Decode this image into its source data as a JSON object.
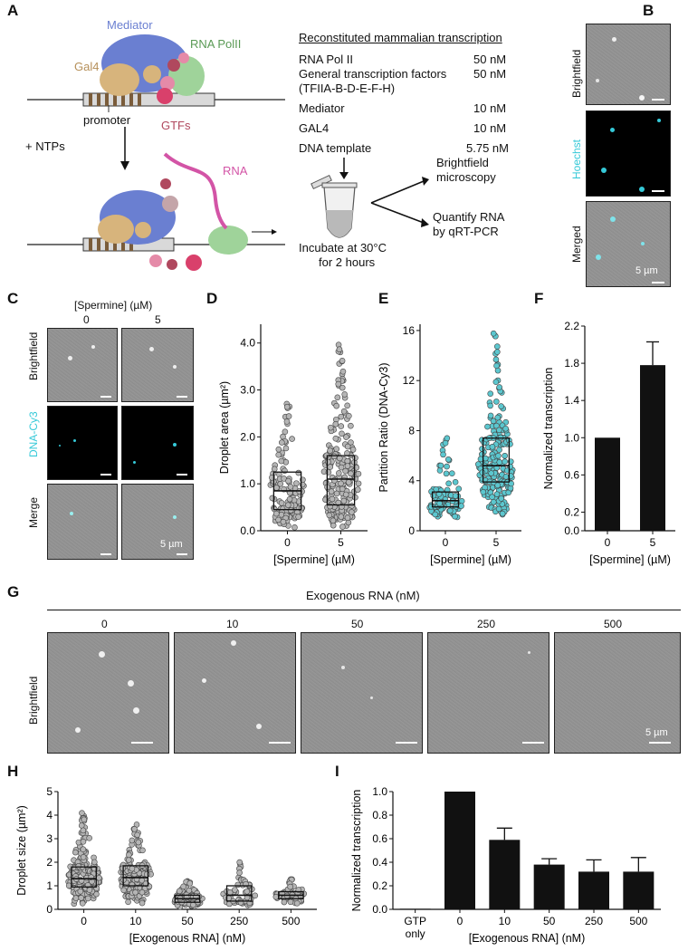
{
  "panel_letters": {
    "A": "A",
    "B": "B",
    "C": "C",
    "D": "D",
    "E": "E",
    "F": "F",
    "G": "G",
    "H": "H",
    "I": "I"
  },
  "panelA": {
    "mediator": "Mediator",
    "rna_polii": "RNA PolII",
    "gal4": "Gal4",
    "promoter": "promoter",
    "gtfs": "GTFs",
    "ntps": "+ NTPs",
    "rna": "RNA",
    "table_title": "Reconstituted mammalian transcription",
    "rows": [
      {
        "name": "RNA Pol II",
        "conc": "50 nM"
      },
      {
        "name": "General transcription factors (TFIIA-B-D-E-F-H)",
        "conc": "50 nM"
      },
      {
        "name": "Mediator",
        "conc": "10 nM"
      },
      {
        "name": "GAL4",
        "conc": "10 nM"
      },
      {
        "name": "DNA template",
        "conc": "5.75 nM"
      }
    ],
    "incubate_line1": "Incubate at 30°C",
    "incubate_line2": "for 2 hours",
    "out1_line1": "Brightfield",
    "out1_line2": "microscopy",
    "out2_line1": "Quantify RNA",
    "out2_line2": "by qRT-PCR",
    "colors": {
      "mediator": "#6a7fd1",
      "polii": "#9fd39a",
      "gal4": "#d7b47c",
      "gtf": "#d9406b",
      "rna": "#d354a6"
    }
  },
  "panelB": {
    "rows": [
      "Brightfield",
      "Hoechst",
      "Merged"
    ],
    "scale": "5 µm",
    "hoechst_color": "#35c9d8"
  },
  "panelC": {
    "header": "[Spermine] (µM)",
    "cols": [
      "0",
      "5"
    ],
    "rows": [
      "Brightfield",
      "DNA-Cy3",
      "Merge"
    ],
    "scale": "5 µm",
    "cy3_color": "#35c9d8"
  },
  "panelG": {
    "header": "Exogenous RNA (nM)",
    "cols": [
      "0",
      "10",
      "50",
      "250",
      "500"
    ],
    "row": "Brightfield",
    "scale": "5 µm"
  },
  "chart_data": [
    {
      "id": "D",
      "type": "scatter",
      "title": "",
      "xlabel": "[Spermine] (µM)",
      "ylabel": "Droplet area (µm²)",
      "categories": [
        "0",
        "5"
      ],
      "ylim": [
        0,
        4.4
      ],
      "yticks": [
        "0.0",
        "1.0",
        "2.0",
        "3.0",
        "4.0"
      ],
      "box": [
        {
          "q1": 0.45,
          "median": 0.85,
          "q3": 1.25,
          "min": 0.05,
          "max": 2.85
        },
        {
          "q1": 0.55,
          "median": 1.1,
          "q3": 1.6,
          "min": 0.05,
          "max": 4.0
        }
      ],
      "n_points": [
        120,
        220
      ],
      "point_color": "#b5b5b5"
    },
    {
      "id": "E",
      "type": "scatter",
      "title": "",
      "xlabel": "[Spermine] (µM)",
      "ylabel": "Partition Ratio (DNA-Cy3)",
      "categories": [
        "0",
        "5"
      ],
      "ylim": [
        0,
        16.5
      ],
      "yticks": [
        "0",
        "4",
        "8",
        "12",
        "16"
      ],
      "box": [
        {
          "q1": 1.9,
          "median": 2.4,
          "q3": 3.1,
          "min": 0.9,
          "max": 7.5
        },
        {
          "q1": 3.9,
          "median": 5.2,
          "q3": 7.4,
          "min": 1.0,
          "max": 16.0
        }
      ],
      "n_points": [
        90,
        210
      ],
      "point_color": "#5cc7cf"
    },
    {
      "id": "F",
      "type": "bar",
      "title": "",
      "xlabel": "[Spermine] (µM)",
      "ylabel": "Normalized transcription",
      "categories": [
        "0",
        "5"
      ],
      "values": [
        1.0,
        1.78
      ],
      "errors": [
        0,
        0.25
      ],
      "ylim": [
        0,
        2.2
      ],
      "yticks": [
        "0.0",
        "0.2",
        "0.6",
        "1.0",
        "1.4",
        "1.8",
        "2.2"
      ]
    },
    {
      "id": "H",
      "type": "scatter",
      "title": "",
      "xlabel": "[Exogenous RNA] (nM)",
      "ylabel": "Droplet size (µm²)",
      "categories": [
        "0",
        "10",
        "50",
        "250",
        "500"
      ],
      "ylim": [
        0,
        5
      ],
      "yticks": [
        "0",
        "1",
        "2",
        "3",
        "4",
        "5"
      ],
      "box": [
        {
          "q1": 0.95,
          "median": 1.3,
          "q3": 1.8,
          "min": 0.2,
          "max": 4.3
        },
        {
          "q1": 1.0,
          "median": 1.35,
          "q3": 1.85,
          "min": 0.2,
          "max": 3.6
        },
        {
          "q1": 0.3,
          "median": 0.45,
          "q3": 0.6,
          "min": 0.1,
          "max": 1.2
        },
        {
          "q1": 0.35,
          "median": 0.6,
          "q3": 1.0,
          "min": 0.15,
          "max": 2.1
        },
        {
          "q1": 0.45,
          "median": 0.6,
          "q3": 0.75,
          "min": 0.2,
          "max": 1.3
        }
      ],
      "n_points": [
        200,
        180,
        90,
        60,
        50
      ],
      "point_color": "#b5b5b5"
    },
    {
      "id": "I",
      "type": "bar",
      "title": "",
      "xlabel": "[Exogenous RNA] (nM)",
      "ylabel": "Normalized transcription",
      "categories": [
        "GTP only",
        "0",
        "10",
        "50",
        "250",
        "500"
      ],
      "values": [
        0.005,
        1.0,
        0.59,
        0.38,
        0.32,
        0.32
      ],
      "errors": [
        0,
        0,
        0.1,
        0.05,
        0.1,
        0.12
      ],
      "ylim": [
        0,
        1.0
      ],
      "yticks": [
        "0.0",
        "0.2",
        "0.4",
        "0.6",
        "0.8",
        "1.0"
      ]
    }
  ]
}
